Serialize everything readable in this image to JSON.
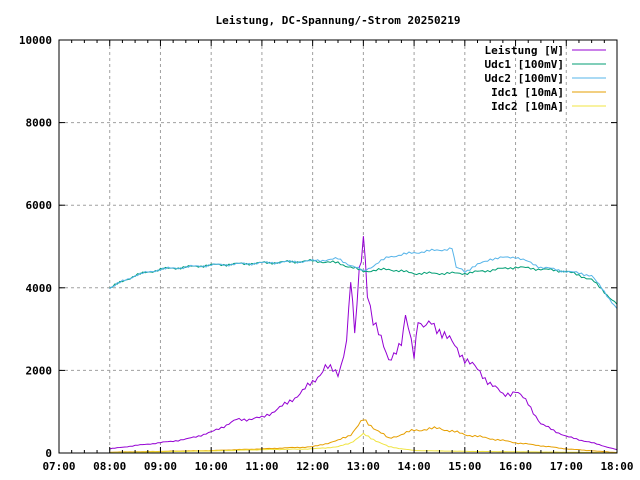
{
  "chart_data": {
    "type": "line",
    "title": "Leistung, DC-Spannung/-Strom 20250219",
    "xlabel": "",
    "ylabel": "",
    "xlim": [
      7,
      18
    ],
    "ylim": [
      0,
      10000
    ],
    "grid": true,
    "legend_position": "top-right",
    "x_tick_labels": [
      "07:00",
      "08:00",
      "09:00",
      "10:00",
      "11:00",
      "12:00",
      "13:00",
      "14:00",
      "15:00",
      "16:00",
      "17:00",
      "18:00"
    ],
    "y_tick_labels": [
      "0",
      "2000",
      "4000",
      "6000",
      "8000",
      "10000"
    ],
    "y_ticks": [
      0,
      2000,
      4000,
      6000,
      8000,
      10000
    ],
    "series": [
      {
        "name": "Leistung [W]",
        "color": "#9400d3",
        "x": [
          8,
          8.5,
          9,
          9.5,
          10,
          10.5,
          11,
          11.5,
          12,
          12.25,
          12.5,
          12.67,
          12.75,
          12.83,
          12.92,
          13,
          13.08,
          13.25,
          13.5,
          13.75,
          13.83,
          14,
          14.08,
          14.5,
          15,
          15.5,
          15.75,
          16,
          16.25,
          16.5,
          17,
          17.5,
          18
        ],
        "y": [
          100,
          180,
          250,
          330,
          500,
          800,
          850,
          1200,
          1700,
          2100,
          1900,
          2600,
          4200,
          3000,
          4500,
          5300,
          3800,
          3000,
          2300,
          2600,
          3300,
          2400,
          3200,
          3000,
          2300,
          1700,
          1400,
          1500,
          1200,
          700,
          400,
          250,
          80
        ]
      },
      {
        "name": "Udc1 [100mV]",
        "color": "#009e73",
        "x": [
          8,
          8.25,
          8.5,
          9,
          10,
          11,
          12,
          12.5,
          13,
          13.5,
          14,
          15,
          16,
          17,
          17.5,
          18
        ],
        "y": [
          4000,
          4150,
          4300,
          4450,
          4550,
          4600,
          4650,
          4600,
          4400,
          4450,
          4350,
          4350,
          4500,
          4400,
          4200,
          3600
        ]
      },
      {
        "name": "Udc2 [100mV]",
        "color": "#56b4e9",
        "x": [
          8,
          8.25,
          8.5,
          9,
          10,
          11,
          12,
          12.5,
          13,
          13.5,
          14,
          14.75,
          14.83,
          15,
          15.5,
          16,
          16.5,
          17,
          17.5,
          18
        ],
        "y": [
          4000,
          4150,
          4300,
          4450,
          4550,
          4600,
          4650,
          4700,
          4400,
          4750,
          4850,
          4950,
          4500,
          4400,
          4700,
          4750,
          4500,
          4400,
          4300,
          3500
        ]
      },
      {
        "name": "Idc1 [10mA]",
        "color": "#e69f00",
        "x": [
          8,
          9,
          10,
          11,
          12,
          12.5,
          12.75,
          13,
          13.5,
          14,
          14.5,
          15,
          16,
          17,
          18
        ],
        "y": [
          20,
          40,
          60,
          100,
          150,
          300,
          450,
          800,
          350,
          550,
          600,
          450,
          250,
          100,
          10
        ]
      },
      {
        "name": "Idc2 [10mA]",
        "color": "#f0e442",
        "x": [
          8,
          9,
          10,
          11,
          12,
          12.5,
          12.75,
          13,
          13.5,
          14,
          15,
          16,
          17,
          18
        ],
        "y": [
          10,
          30,
          50,
          80,
          100,
          150,
          250,
          450,
          150,
          60,
          40,
          30,
          20,
          5
        ]
      }
    ]
  }
}
